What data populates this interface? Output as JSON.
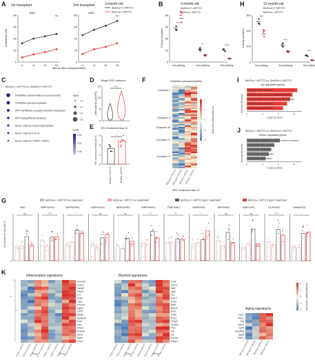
{
  "panels": {
    "A": {
      "label": "A",
      "ylabel": "Chimerism (%)",
      "xlabel": "Weeks after transplantation",
      "legend": [
        "Bcl11a+/+;WT/T2",
        "Bcl11a-/-;WT/T2"
      ],
      "sub1": {
        "title": "1st transplant",
        "inner": "WBC"
      },
      "sub2": {
        "title": "2nd transplant",
        "inner": "WBC",
        "ctitle": "3-month-old"
      },
      "xticks": [
        "4",
        "8",
        "12",
        "16"
      ],
      "yticks1": [
        "0",
        "20",
        "40",
        "60",
        "80"
      ],
      "yticks2": [
        "0",
        "20",
        "40",
        "60",
        "80"
      ],
      "stars": [
        "**",
        "**"
      ]
    },
    "B": {
      "label": "B",
      "title": "3-month-old",
      "ylabel": "Colony numbers",
      "legend": [
        "Bcl11a+/+;WT/T2",
        "Bcl11a-/-;WT/T2"
      ],
      "cats": [
        "1st plating",
        "2nd plating",
        "3rd plating"
      ],
      "yticks": [
        "0",
        "20",
        "40",
        "60",
        "80"
      ],
      "stars": [
        "****",
        "**",
        "****"
      ]
    },
    "H": {
      "label": "H",
      "title": "12-month-old",
      "ylabel": "Colony numbers",
      "legend": [
        "Bcl11a+/+;WT/T2",
        "Bcl11a-/-;WT/T2"
      ],
      "cats": [
        "1st plating",
        "2nd plating",
        "3rd plating"
      ],
      "yticks": [
        "0",
        "100",
        "200",
        "300"
      ],
      "stars": [
        "****",
        "****",
        "****"
      ]
    },
    "C": {
      "label": "C",
      "title": "Bcl11a-/-;WT/T2 vs. Bcl11a+/+;WT/T2",
      "terms": [
        "Oxidative stress-induced senescence",
        "Oxidative phosphorylation",
        "ATP synthesis coupled electron transport",
        "ATP biosynthetic process",
        "Bone marrow early erythroblast",
        "Bone marrow Pro-B",
        "Bone marrow CD34+ HSPC"
      ],
      "nes_label": "NES",
      "nes_ticks": [
        "1.6",
        "2.0",
        "2.4",
        "2.8"
      ],
      "fdr_label": "FDR",
      "fdr_ticks": [
        "0.15",
        "0.10",
        "0.05"
      ]
    },
    "D": {
      "label": "D",
      "title": "Single HSC colonies",
      "ylabel": "Cell counts (x10^3)",
      "yticks": [
        "0",
        "5",
        "10",
        "15"
      ],
      "stars": "***"
    },
    "E": {
      "label": "E",
      "title": "SFU treatment day 12",
      "ylabel": "HSC numbers per/well (x10^3)",
      "yticks": [
        "0",
        "1",
        "2",
        "3"
      ],
      "stars": "*",
      "xcats": [
        "Bcl11a+/+;WT/T2",
        "Bcl11a-/-;WT/T2"
      ]
    },
    "F": {
      "label": "F",
      "title": "Oxidative phosphorylation",
      "rows": [
        "Complex I",
        "Complex II",
        "Complex III",
        "Complex IV",
        "Complex V"
      ],
      "scale_label": "Normalized gene expression",
      "scale_ticks": [
        "2",
        "1",
        "0",
        "-1",
        "-2"
      ],
      "cols": [
        "Bcl11a+/+;WT/T2",
        "Bcl11a+/+;WT/T2",
        "Bcl11a-/-;WT/T2",
        "Bcl11a-/-;WT/T2"
      ],
      "footer": "SFU treatment day 12"
    },
    "I": {
      "label": "I",
      "title": "Bcl11a-/-;WT/T2 vs. Bcl11a+/+;WT/T2",
      "subtitle": "Up-regulated genes",
      "axis_label": "Enriched GO terms",
      "xlabel": "-Log10 (q value)",
      "xticks": [
        "0",
        "2",
        "4",
        "6"
      ],
      "bars": [
        {
          "label": "Myeloid cell homeostasis",
          "value": 6.4
        },
        {
          "label": "Reactive oxygen species metabolic process",
          "value": 5.8
        },
        {
          "label": "Positive regulation of myeloid cell differentiation",
          "value": 5.5
        },
        {
          "label": "Myeloid cell development",
          "value": 5.1
        },
        {
          "label": "Myeloid cell differentiation",
          "value": 4.6
        }
      ]
    },
    "J": {
      "label": "J",
      "title": "Bcl11a-/-;WT/T2 vs. Bcl11a+/+;WT/T2",
      "subtitle": "Down-regulated genes",
      "axis_label": "Enriched GO terms",
      "xlabel": "-Log10 (q value)",
      "xticks": [
        "0",
        "2",
        "4",
        "6"
      ],
      "bars": [
        {
          "label": "Lymphocyte activation involved in immune response",
          "value": 4.2
        },
        {
          "label": "Lymphocyte differentiation",
          "value": 3.5
        },
        {
          "label": "Lymphocyte proliferation",
          "value": 3.1
        },
        {
          "label": "Lymphocyte differentiation",
          "value": 2.8
        },
        {
          "label": "Lymphocyte proliferation",
          "value": 2.4
        }
      ]
    },
    "G": {
      "label": "G",
      "ylabel": "Cell number per leg (x10^4)",
      "legend": [
        "Bcl11a+/+;WT/T2 no treatment",
        "Bcl11a-/-;WT/T2 no treatment",
        "Bcl11a+/+;WT/T2 pIpC treatment",
        "Bcl11a-/-;WT/T2 pIpC treatment"
      ],
      "cells": [
        "HSC",
        "MPP1/HSC",
        "MPP5/HSC",
        "MPP2/HSC",
        "MPP3/HSC",
        "MPP4/HSC",
        "CMP/HSC",
        "GMP/HSC",
        "MEP/HSC",
        "MkP/HSC",
        "CLP/HSC",
        "PreB/HSC"
      ],
      "sig": [
        "ns",
        "****",
        "*",
        "ns",
        "ns",
        "**",
        "**",
        "*",
        "ns",
        "ns",
        "***",
        "*"
      ],
      "y0": "0"
    },
    "K": {
      "label": "K",
      "infl_title": "Inflammation signatures",
      "infl_genes": [
        "Serna7a",
        "Sesn1l",
        "Vamp8",
        "Pde2a",
        "Ier1",
        "Scai3",
        "Trip2",
        "Unc13d",
        "Agtr1a",
        "Cd55",
        "Nfkbia",
        "Rps6ka4",
        "Snx4",
        "Lbrs",
        "Crisp1",
        "Snap23",
        "Abin2",
        "Ackr1",
        "Ccrn1"
      ],
      "mye_title": "Myeloid signatures",
      "mye_genes": [
        "Csf3r",
        "Ostm1",
        "Jak2",
        "Jak3",
        "Fli1",
        "Pisor1",
        "Prtn3",
        "Batf2",
        "Meox2",
        "Nos2",
        "Cd84",
        "Prkca",
        "Tmod3",
        "Vps33a",
        "Tfe3",
        "Fgr",
        "Lbr",
        "Cd24a",
        "Stxbp2"
      ],
      "aging_title": "Aging signatures",
      "aging_genes": [
        "Nes1",
        "Pisor2",
        "Sdp",
        "Nupr1",
        "Zgrf6",
        "Gadd45g",
        "Stpp8",
        "Selm1"
      ],
      "scale_label": "Normalized gene expression",
      "scale_ticks": [
        "2",
        "1",
        "0",
        "-1",
        "-2"
      ],
      "col_labels": [
        "Bcl11a+/+;WT/T2",
        "Bcl11a+/+;WT/T2",
        "Bcl11a-/-;WT/T2",
        "Bcl11a-/-;WT/T2",
        "Bcl11a+/+;WT/T2",
        "Bcl11a+/+;WT/T2",
        "Bcl11a-/-;WT/T2",
        "Bcl11a-/-;WT/T2"
      ],
      "ages": [
        "3 m",
        "12 m"
      ]
    }
  },
  "colors": {
    "ctrl": "#333333",
    "ko": "#e03a3a",
    "heat_hi": "#d73027",
    "heat_mid": "#f5f5dc",
    "heat_lo": "#4575b4"
  }
}
